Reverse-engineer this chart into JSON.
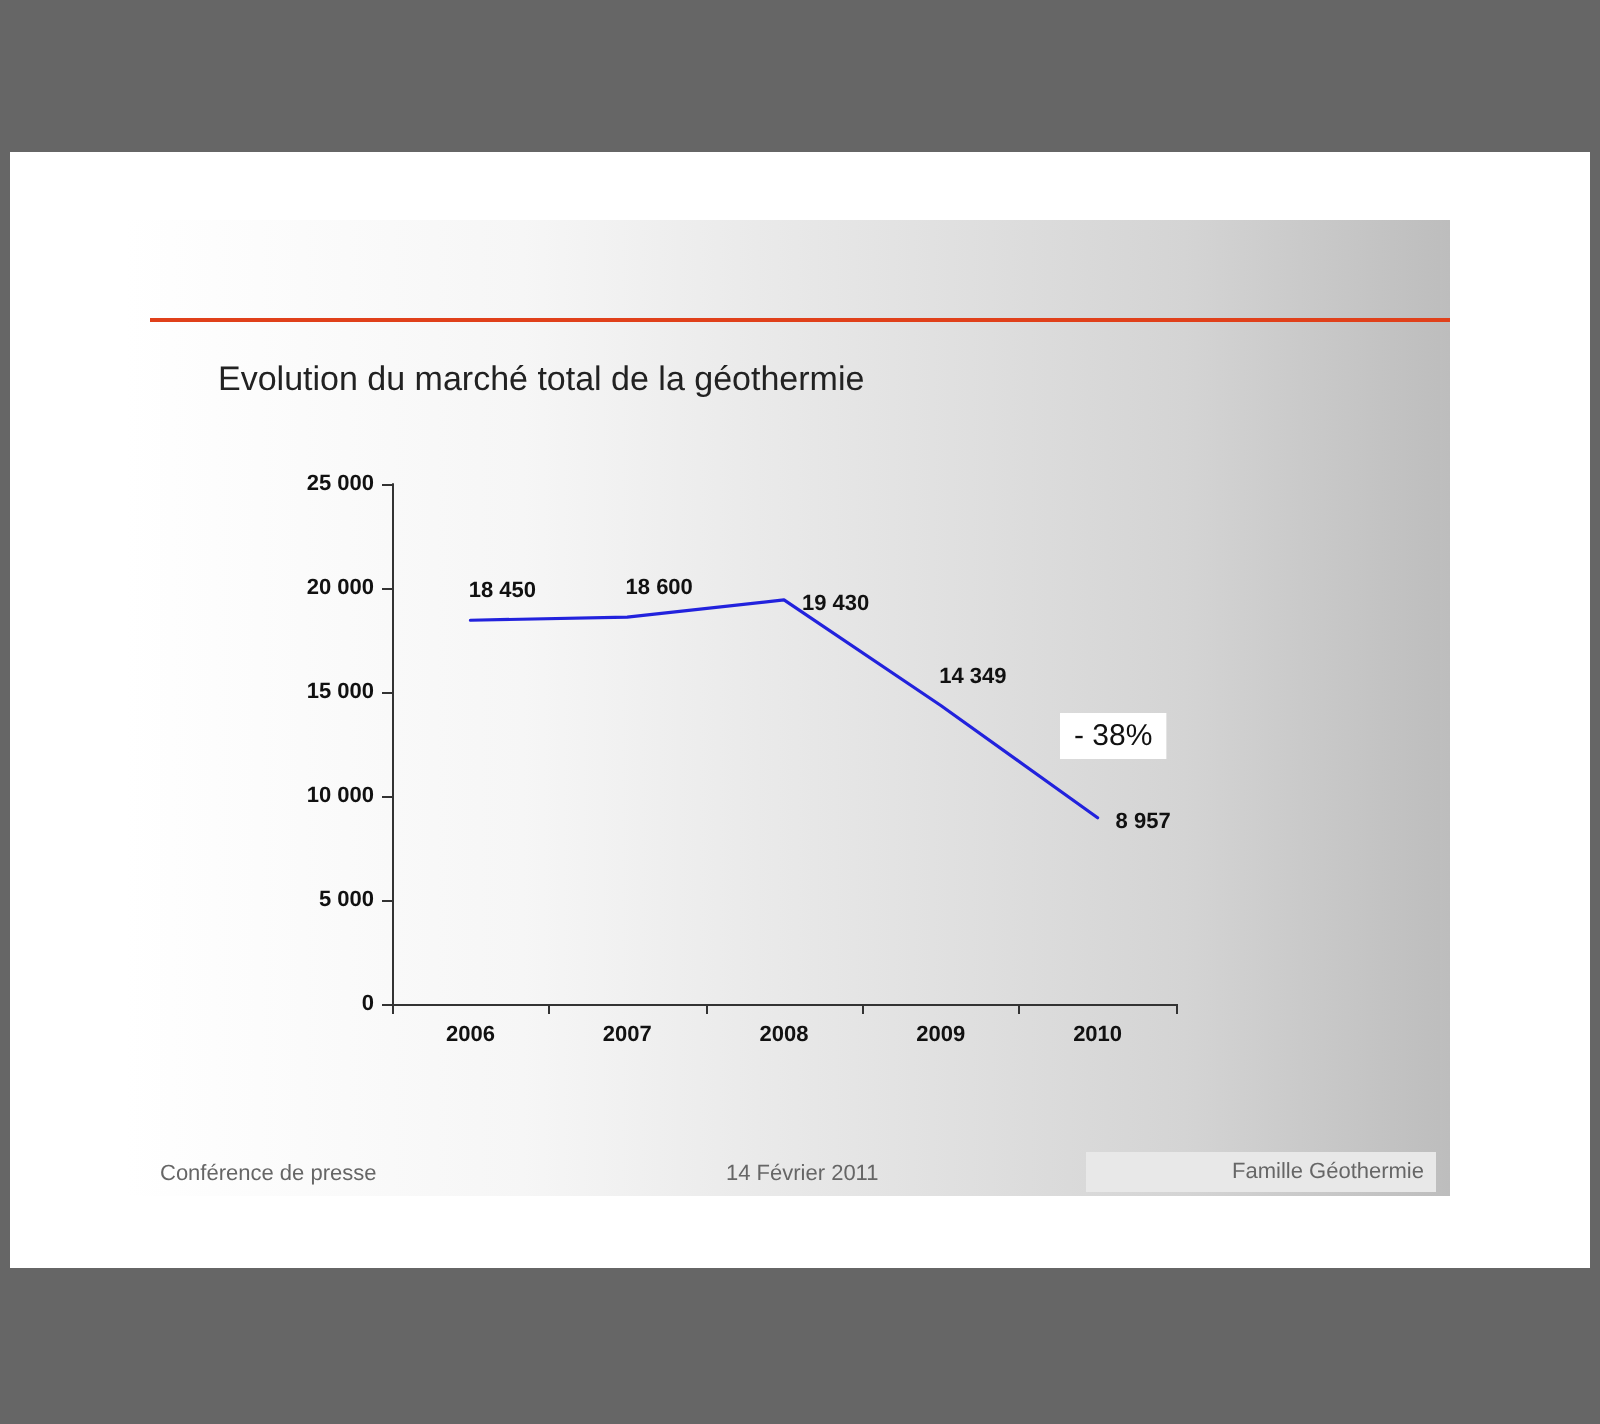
{
  "chart_data": {
    "type": "line",
    "title": "Evolution du marché total de la géothermie",
    "categories": [
      "2006",
      "2007",
      "2008",
      "2009",
      "2010"
    ],
    "values": [
      18450,
      18600,
      19430,
      14349,
      8957
    ],
    "color": "#2222dd",
    "value_labels": [
      "18 450",
      "18 600",
      "19 430",
      "14 349",
      "8 957"
    ],
    "ylim": [
      0,
      25000
    ],
    "yticks": [
      {
        "value": 0,
        "label": "0"
      },
      {
        "value": 5000,
        "label": "5 000"
      },
      {
        "value": 10000,
        "label": "10 000"
      },
      {
        "value": 15000,
        "label": "15 000"
      },
      {
        "value": 20000,
        "label": "20 000"
      },
      {
        "value": 25000,
        "label": "25 000"
      }
    ],
    "grid": false,
    "marker": "none",
    "line_style": "solid",
    "annotations": [
      "- 38%",
      "Conférence de presse",
      "14 Février 2011",
      "Famille Géothermie"
    ]
  }
}
